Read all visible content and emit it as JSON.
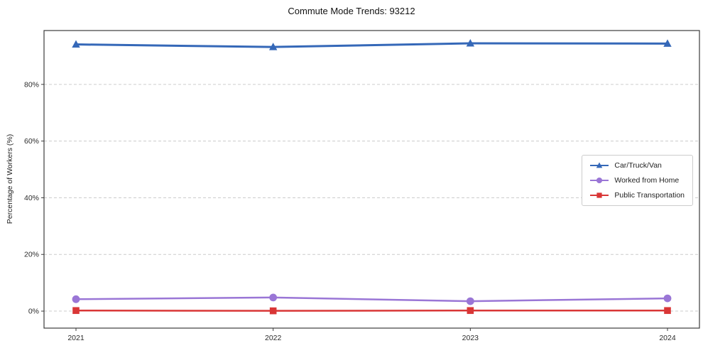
{
  "chart_data": {
    "type": "line",
    "title": "Commute Mode Trends: 93212",
    "xlabel": "",
    "ylabel": "Percentage of Workers (%)",
    "x": [
      "2021",
      "2022",
      "2023",
      "2024"
    ],
    "series": [
      {
        "name": "Car/Truck/Van",
        "color": "#3568b8",
        "marker": "triangle",
        "line_width": 3,
        "values": [
          94.1,
          93.2,
          94.5,
          94.4
        ]
      },
      {
        "name": "Worked from Home",
        "color": "#9a76d6",
        "marker": "circle",
        "line_width": 2.5,
        "values": [
          4.2,
          4.8,
          3.5,
          4.5
        ]
      },
      {
        "name": "Public Transportation",
        "color": "#d93636",
        "marker": "square",
        "line_width": 2.5,
        "values": [
          0.2,
          0.1,
          0.2,
          0.2
        ]
      }
    ],
    "yticks": [
      0,
      20,
      40,
      60,
      80
    ],
    "ytick_labels": [
      "0%",
      "20%",
      "40%",
      "60%",
      "80%"
    ],
    "ylim": [
      -6,
      99
    ],
    "grid": "dashed-horizontal",
    "legend_position": "right-center",
    "spine_color": "#3c3c3c",
    "grid_color": "#cccccc",
    "background": "#ffffff"
  }
}
